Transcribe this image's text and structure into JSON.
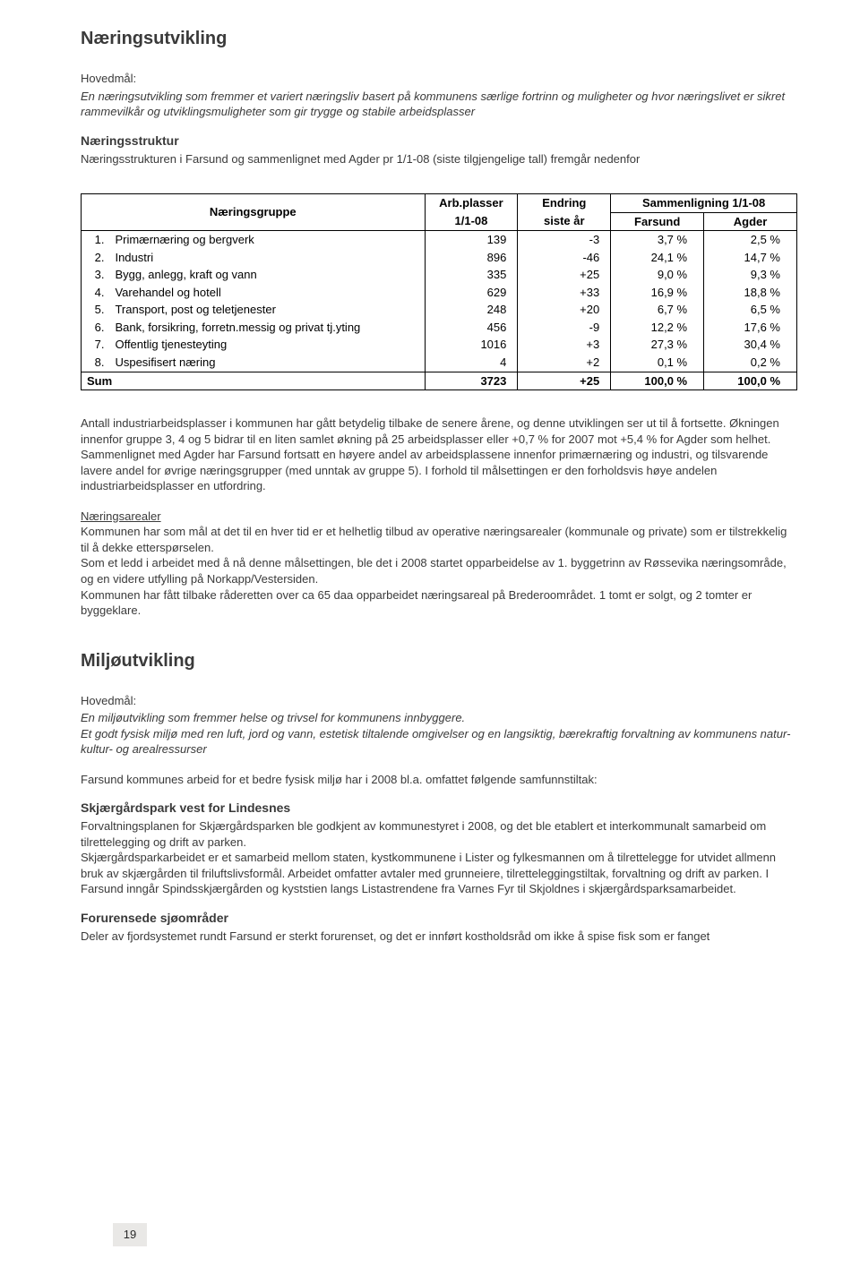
{
  "page": {
    "number": "19"
  },
  "section1": {
    "title": "Næringsutvikling",
    "hovedmal_label": "Hovedmål:",
    "hovedmal_text": "En næringsutvikling som fremmer et variert næringsliv basert på kommunens særlige fortrinn og muligheter og hvor næringslivet er sikret rammevilkår og utviklingsmuligheter som gir trygge og stabile arbeidsplasser",
    "naeringsstruktur_heading": "Næringsstruktur",
    "naeringsstruktur_intro": "Næringsstrukturen i Farsund og sammenlignet med Agder pr 1/1-08 (siste tilgjengelige tall) fremgår nedenfor",
    "body_p1": "Antall industriarbeidsplasser i kommunen har gått betydelig tilbake de senere årene, og denne utviklingen ser ut til å fortsette. Økningen innenfor gruppe 3, 4 og 5 bidrar til en liten samlet økning på 25 arbeidsplasser eller +0,7 %  for 2007 mot +5,4 % for Agder som helhet.",
    "body_p2": "Sammenlignet med Agder har Farsund fortsatt en høyere andel av arbeidsplassene innenfor primærnæring og industri, og tilsvarende lavere andel for øvrige næringsgrupper (med unntak av gruppe 5). I forhold til målsettingen er den forholdsvis høye andelen industriarbeidsplasser en utfordring.",
    "naeringsarealer_heading": "Næringsarealer",
    "naeringsarealer_p1": "Kommunen har som mål at det til en hver tid er et helhetlig tilbud av operative næringsarealer (kommunale og private) som er tilstrekkelig til å dekke etterspørselen.",
    "naeringsarealer_p2": "Som et ledd i arbeidet med å nå denne målsettingen, ble det i 2008 startet opparbeidelse av 1. byggetrinn av Røssevika næringsområde, og en videre utfylling på Norkapp/Vestersiden.",
    "naeringsarealer_p3": "Kommunen har fått tilbake råderetten over ca 65 daa opparbeidet næringsareal på Brederoområdet. 1 tomt er solgt, og 2 tomter er byggeklare."
  },
  "table": {
    "heading_group": "Næringsgruppe",
    "heading_arb_top": "Arb.plasser",
    "heading_arb_bottom": "1/1-08",
    "heading_endring_top": "Endring",
    "heading_endring_bottom": "siste år",
    "heading_sammen_top": "Sammenligning 1/1-08",
    "heading_farsund": "Farsund",
    "heading_agder": "Agder",
    "rows": [
      {
        "n": "1.",
        "name": "Primærnæring og bergverk",
        "arb": "139",
        "endring": "-3",
        "farsund": "3,7 %",
        "agder": "2,5 %"
      },
      {
        "n": "2.",
        "name": "Industri",
        "arb": "896",
        "endring": "-46",
        "farsund": "24,1 %",
        "agder": "14,7 %"
      },
      {
        "n": "3.",
        "name": "Bygg, anlegg, kraft og vann",
        "arb": "335",
        "endring": "+25",
        "farsund": "9,0 %",
        "agder": "9,3 %"
      },
      {
        "n": "4.",
        "name": "Varehandel og hotell",
        "arb": "629",
        "endring": "+33",
        "farsund": "16,9 %",
        "agder": "18,8 %"
      },
      {
        "n": "5.",
        "name": "Transport, post og teletjenester",
        "arb": "248",
        "endring": "+20",
        "farsund": "6,7 %",
        "agder": "6,5 %"
      },
      {
        "n": "6.",
        "name": "Bank, forsikring, forretn.messig og privat tj.yting",
        "arb": "456",
        "endring": "-9",
        "farsund": "12,2 %",
        "agder": "17,6 %"
      },
      {
        "n": "7.",
        "name": "Offentlig tjenesteyting",
        "arb": "1016",
        "endring": "+3",
        "farsund": "27,3 %",
        "agder": "30,4 %"
      },
      {
        "n": "8.",
        "name": "Uspesifisert næring",
        "arb": "4",
        "endring": "+2",
        "farsund": "0,1 %",
        "agder": "0,2 %"
      }
    ],
    "sum": {
      "label": "Sum",
      "arb": "3723",
      "endring": "+25",
      "farsund": "100,0 %",
      "agder": "100,0 %"
    },
    "styling": {
      "border_color": "#000000",
      "font_size": 13,
      "header_bold": true,
      "col_widths_pct": [
        4,
        44,
        13,
        13,
        13,
        13
      ]
    }
  },
  "section2": {
    "title": "Miljøutvikling",
    "hovedmal_label": "Hovedmål:",
    "hovedmal_text1": "En miljøutvikling som fremmer helse og trivsel for kommunens innbyggere.",
    "hovedmal_text2": "Et godt fysisk miljø med ren luft, jord og vann, estetisk tiltalende omgivelser og en langsiktig, bærekraftig forvaltning av kommunens natur- kultur- og arealressurser",
    "intro": "Farsund kommunes arbeid for et bedre fysisk miljø har i 2008 bl.a. omfattet følgende samfunnstiltak:",
    "sub1_title": "Skjærgårdspark vest for Lindesnes",
    "sub1_p1": "Forvaltningsplanen for Skjærgårdsparken ble godkjent av kommunestyret i 2008, og det ble etablert et interkommunalt samarbeid om tilrettelegging og drift av parken.",
    "sub1_p2": "Skjærgårdsparkarbeidet er et samarbeid mellom staten, kystkommunene i Lister og fylkesmannen om å tilrettelegge for utvidet allmenn bruk av skjærgården til friluftslivsformål. Arbeidet omfatter avtaler med grunneiere, tilretteleggingstiltak, forvaltning og drift av parken. I Farsund inngår Spindsskjærgården og kyststien langs Listastrendene fra Varnes Fyr til Skjoldnes i skjærgårdsparksamarbeidet.",
    "sub2_title": "Forurensede sjøområder",
    "sub2_p1": "Deler av fjordsystemet rundt Farsund er sterkt forurenset, og det er innført kostholdsråd om ikke å spise fisk som er fanget"
  }
}
